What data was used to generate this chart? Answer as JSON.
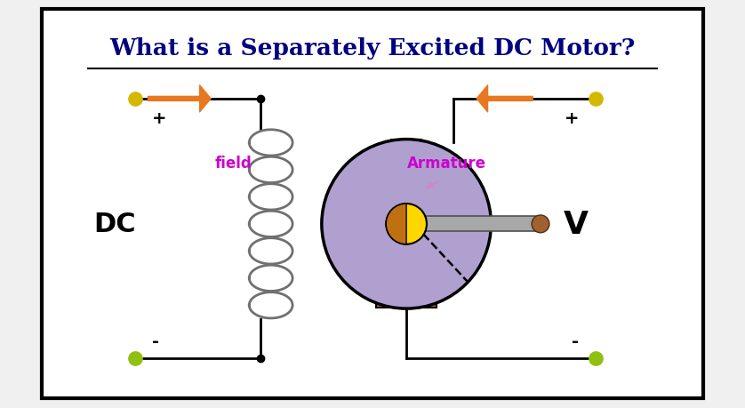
{
  "title": "What is a Separately Excited DC Motor?",
  "title_fontsize": 19,
  "title_color": "#000080",
  "background_color": "#ffffff",
  "border_color": "#000000",
  "fig_bg": "#f0f0f0",
  "dc_label": "DC",
  "v_label": "V",
  "field_label": "field",
  "armature_label": "Armature",
  "arrow_color": "#e87820",
  "coil_color": "#707070",
  "motor_body_color": "#b0a0d0",
  "motor_body_edge": "#000000",
  "shaft_color": "#a8a8a8",
  "brush_color": "#b87040",
  "commutator_color": "#ffd700",
  "commutator_dark": "#c07010",
  "wire_color": "#000000",
  "dot_yellow_top": "#d4b800",
  "dot_green_bot": "#90c010"
}
